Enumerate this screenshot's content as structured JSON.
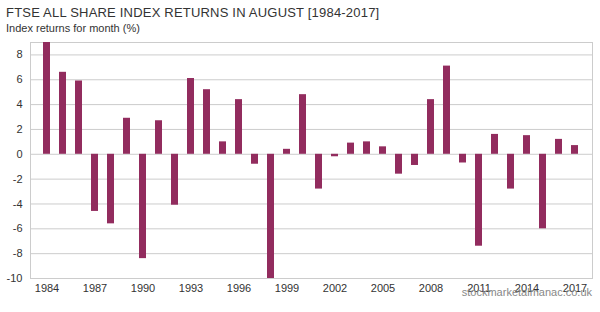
{
  "chart_data": {
    "type": "bar",
    "title": "FTSE ALL SHARE INDEX RETURNS IN AUGUST [1984-2017]",
    "subtitle": "Index returns for month (%)",
    "caption": "stockmarketalmanac.co.uk",
    "categories": [
      "1984",
      null,
      null,
      "1987",
      null,
      null,
      "1990",
      null,
      null,
      "1993",
      null,
      null,
      "1996",
      null,
      null,
      "1999",
      null,
      null,
      "2002",
      null,
      null,
      "2005",
      null,
      null,
      "2008",
      null,
      null,
      "2011",
      null,
      null,
      "2014",
      null,
      null,
      "2017"
    ],
    "values": [
      9.0,
      6.6,
      5.9,
      -4.6,
      -5.6,
      2.9,
      -8.4,
      2.7,
      -4.1,
      6.1,
      5.2,
      1.0,
      4.4,
      -0.8,
      -10.0,
      0.4,
      4.8,
      -2.8,
      -0.2,
      0.9,
      1.0,
      0.6,
      -1.6,
      -0.9,
      4.4,
      7.1,
      -0.7,
      -7.4,
      1.6,
      -2.8,
      1.5,
      -6.0,
      1.2,
      0.7
    ],
    "color": "#922c5e",
    "ylim": [
      -10,
      9
    ],
    "yticks": [
      -10,
      -8,
      -6,
      -4,
      -2,
      0,
      2,
      4,
      6,
      8
    ],
    "grid": true
  }
}
